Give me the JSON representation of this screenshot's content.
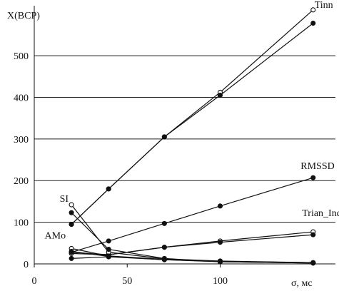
{
  "chart_data": {
    "type": "line",
    "ylabel": "X(BCP)",
    "xlabel": "σ, мс",
    "xlim": [
      0,
      162
    ],
    "ylim": [
      0,
      620
    ],
    "x_ticks": [
      0,
      50,
      100
    ],
    "x_tick_labels": [
      "0",
      "50",
      "100"
    ],
    "y_ticks": [
      0,
      100,
      200,
      300,
      400,
      500
    ],
    "y_tick_labels": [
      "0",
      "100",
      "200",
      "300",
      "400",
      "500"
    ],
    "grid": "horizontal",
    "x": [
      20,
      40,
      70,
      100,
      150
    ],
    "series": [
      {
        "name": "Tinn",
        "marker": "open",
        "values": [
          95,
          180,
          305,
          412,
          610
        ]
      },
      {
        "name": "",
        "marker": "filled",
        "values": [
          95,
          180,
          305,
          405,
          578
        ]
      },
      {
        "name": "RMSSD",
        "marker": "filled",
        "values": [
          28,
          55,
          97,
          139,
          207
        ]
      },
      {
        "name": "Trian_Ind",
        "marker": "open",
        "values": [
          25,
          22,
          40,
          55,
          77
        ]
      },
      {
        "name": "",
        "marker": "filled",
        "values": [
          28,
          22,
          40,
          52,
          70
        ]
      },
      {
        "name": "SI",
        "marker": "open",
        "values": [
          142,
          28,
          12,
          7,
          3
        ]
      },
      {
        "name": "",
        "marker": "filled",
        "values": [
          123,
          35,
          13,
          5,
          2
        ]
      },
      {
        "name": "AMo",
        "marker": "open",
        "values": [
          37,
          19,
          11,
          6,
          3
        ]
      },
      {
        "name": "",
        "marker": "filled",
        "values": [
          30,
          18,
          10,
          5,
          2
        ]
      },
      {
        "name": "",
        "marker": "filled",
        "values": [
          13,
          17,
          10,
          6,
          3
        ]
      }
    ]
  }
}
